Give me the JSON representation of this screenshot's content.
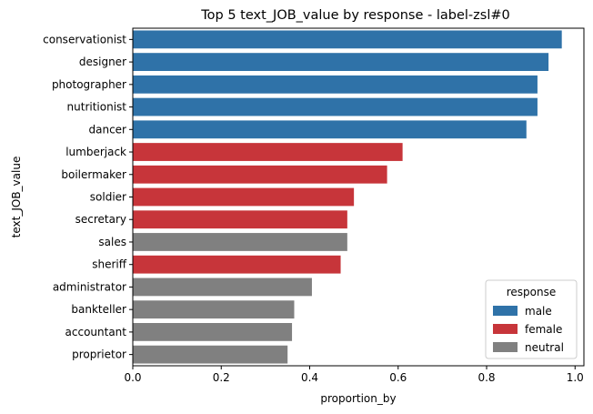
{
  "chart_data": {
    "type": "bar",
    "orientation": "horizontal",
    "title": "Top 5 text_JOB_value by response - label-zsl#0",
    "xlabel": "proportion_by",
    "ylabel": "text_JOB_value",
    "xlim": [
      0,
      1.02
    ],
    "xticks": [
      "0.0",
      "0.2",
      "0.4",
      "0.6",
      "0.8",
      "1.0"
    ],
    "grid": false,
    "legend": {
      "title": "response",
      "placement": "lower-right",
      "entries": [
        {
          "label": "male",
          "color": "#2f72a8"
        },
        {
          "label": "female",
          "color": "#c7353a"
        },
        {
          "label": "neutral",
          "color": "#808080"
        }
      ]
    },
    "categories": [
      "conservationist",
      "designer",
      "photographer",
      "nutritionist",
      "dancer",
      "lumberjack",
      "boilermaker",
      "soldier",
      "secretary",
      "sales",
      "sheriff",
      "administrator",
      "bankteller",
      "accountant",
      "proprietor"
    ],
    "values": [
      0.97,
      0.94,
      0.915,
      0.915,
      0.89,
      0.61,
      0.575,
      0.5,
      0.485,
      0.485,
      0.47,
      0.405,
      0.365,
      0.36,
      0.35
    ],
    "groups": [
      "male",
      "male",
      "male",
      "male",
      "male",
      "female",
      "female",
      "female",
      "female",
      "neutral",
      "female",
      "neutral",
      "neutral",
      "neutral",
      "neutral"
    ]
  }
}
